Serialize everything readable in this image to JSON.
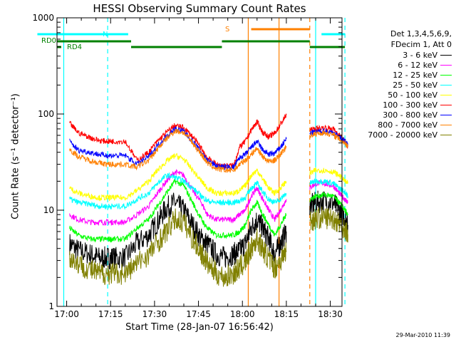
{
  "chart_data": {
    "type": "line",
    "title": "HESSI Observing Summary Count Rates",
    "xlabel": "Start Time (28-Jan-07 16:56:42)",
    "ylabel": "Count Rate (s⁻¹ detector⁻¹)",
    "yscale": "log",
    "ylim": [
      1,
      1000
    ],
    "xlim": [
      "16:56:42",
      "18:34:00"
    ],
    "x_ticks": [
      "17:00",
      "17:15",
      "17:30",
      "17:45",
      "18:00",
      "18:15",
      "18:30"
    ],
    "y_ticks": [
      "1",
      "10",
      "100",
      "1000"
    ],
    "grid": false,
    "legend_position": "right",
    "legend_header": [
      "Det 1,3,4,5,6,9,",
      "FDecim 1, Att 0"
    ],
    "x_minutes": [
      1,
      4,
      8,
      11,
      14,
      16,
      20,
      24,
      28,
      31,
      34,
      37,
      40,
      43,
      46,
      48,
      51,
      54,
      57,
      59,
      61,
      63,
      65,
      67,
      69,
      71,
      73,
      75,
      80,
      83,
      85,
      88,
      91,
      93,
      95,
      96
    ],
    "series": [
      {
        "name": "3 - 6 keV",
        "color": "#000000",
        "values": [
          4.5,
          3.8,
          3.5,
          3.2,
          3.2,
          3.2,
          3.2,
          4.5,
          5.5,
          7.5,
          10.5,
          12,
          10,
          7,
          5,
          4.5,
          3.5,
          3.2,
          3.5,
          3.8,
          4.5,
          6.5,
          8,
          6.5,
          5,
          3.5,
          4.5,
          6,
          null,
          11,
          12,
          12.5,
          12,
          10,
          8.5,
          7
        ]
      },
      {
        "name": "6 - 12 keV",
        "color": "#ff00ff",
        "values": [
          9,
          8,
          7.5,
          7.5,
          7.5,
          7.5,
          7.5,
          9,
          11,
          15,
          20,
          25,
          23,
          16,
          12,
          9,
          8,
          8,
          8,
          9,
          10,
          14,
          17,
          13,
          10,
          8,
          10,
          13,
          null,
          17,
          19,
          19,
          18,
          15,
          13,
          12
        ]
      },
      {
        "name": "12 - 25 keV",
        "color": "#00ff00",
        "values": [
          6.5,
          5.5,
          5,
          5,
          5,
          5,
          5,
          6.5,
          8,
          11,
          15,
          20,
          18,
          12,
          8,
          6.5,
          5.5,
          5.5,
          5.5,
          6,
          7,
          10,
          12,
          9,
          7,
          5.5,
          7,
          9,
          null,
          13,
          14,
          14.5,
          14,
          12,
          10,
          9
        ]
      },
      {
        "name": "25 - 50 keV",
        "color": "#00ffff",
        "values": [
          13,
          12,
          11.5,
          11,
          11,
          11,
          11,
          13,
          15,
          19,
          23,
          22,
          20,
          17,
          14,
          12.5,
          12,
          12,
          12,
          12.5,
          13.5,
          17,
          19,
          15.5,
          13,
          12,
          13,
          15,
          null,
          19,
          20,
          20,
          19,
          17,
          15.5,
          14
        ]
      },
      {
        "name": "50 - 100 keV",
        "color": "#ffff00",
        "values": [
          17,
          15,
          14,
          13.5,
          13.5,
          13.5,
          13.5,
          16,
          20,
          26,
          32,
          37,
          34,
          26,
          20,
          17,
          15,
          15,
          15,
          16,
          18,
          23,
          26,
          21,
          17,
          15,
          17,
          20,
          null,
          24,
          26,
          26,
          25,
          23,
          20,
          19
        ]
      },
      {
        "name": "100 - 300 keV",
        "color": "#ff0000",
        "values": [
          80,
          64,
          57,
          53,
          52,
          52,
          52,
          33,
          40,
          52,
          64,
          76,
          72,
          58,
          44,
          35,
          30,
          29,
          29,
          45,
          52,
          68,
          83,
          64,
          58,
          63,
          78,
          98,
          null,
          68,
          70,
          72,
          70,
          61,
          52,
          46
        ]
      },
      {
        "name": "300 - 800 keV",
        "color": "#0000ff",
        "values": [
          52,
          42,
          40,
          38,
          37,
          37,
          37,
          30,
          36,
          47,
          58,
          70,
          66,
          52,
          40,
          33,
          29,
          28,
          28,
          35,
          38,
          45,
          52,
          42,
          38,
          39,
          45,
          55,
          null,
          63,
          65,
          67,
          64,
          58,
          52,
          48
        ]
      },
      {
        "name": "800 - 7000 keV",
        "color": "#ff8000",
        "values": [
          43,
          36,
          33,
          31,
          30,
          30,
          30,
          28,
          33,
          43,
          55,
          67,
          64,
          50,
          38,
          31,
          27,
          26,
          26,
          30,
          33,
          38,
          44,
          36,
          32,
          33,
          38,
          46,
          null,
          60,
          62,
          64,
          61,
          55,
          50,
          46
        ]
      },
      {
        "name": "7000 - 20000 keV",
        "color": "#808000",
        "values": [
          3.2,
          2.8,
          2.4,
          2.2,
          2.2,
          2.2,
          2.2,
          2.8,
          3.5,
          4.6,
          6,
          8,
          7.5,
          5,
          3.6,
          2.8,
          2.2,
          2,
          2.2,
          2.5,
          2.9,
          4,
          5,
          3.9,
          3.1,
          2.5,
          3,
          3.8,
          null,
          7.8,
          8.2,
          8.4,
          8.2,
          7.4,
          6.4,
          5.6
        ]
      }
    ],
    "attenuator_track": {
      "labels": [
        {
          "text": "RD0",
          "color": "#008000"
        },
        {
          "text": "RD4",
          "color": "#008000"
        },
        {
          "text": "N",
          "color": "#00ffff"
        },
        {
          "text": "S",
          "color": "#ff8000"
        }
      ],
      "night_bars": [
        [
          -10,
          21
        ],
        [
          87,
          95
        ]
      ],
      "saa_bars": [
        [
          63,
          83
        ]
      ],
      "rd_high": [
        [
          -10,
          22
        ],
        [
          53,
          83
        ]
      ],
      "rd_low": [
        [
          22,
          53
        ],
        [
          83,
          95
        ]
      ],
      "cyan_solid": [
        -1,
        85
      ],
      "cyan_dashed": [
        14,
        95
      ],
      "orange_solid": [
        62,
        72.5
      ],
      "orange_dashed": [
        83
      ]
    }
  },
  "timestamp": "29-Mar-2010 11:39"
}
